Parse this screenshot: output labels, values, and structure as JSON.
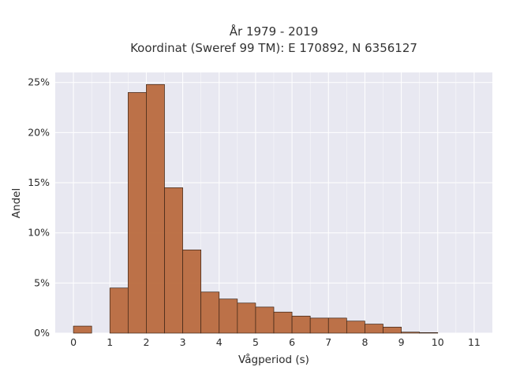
{
  "chart_data": {
    "type": "bar",
    "title_line1": "År 1979 - 2019",
    "title_line2": "Koordinat (Sweref 99 TM): E 170892, N 6356127",
    "xlabel": "Vågperiod (s)",
    "ylabel": "Andel",
    "xlim": [
      -0.5,
      11.5
    ],
    "ylim": [
      0,
      0.26
    ],
    "x_ticks": [
      0,
      1,
      2,
      3,
      4,
      5,
      6,
      7,
      8,
      9,
      10,
      11
    ],
    "y_ticks": [
      0,
      0.05,
      0.1,
      0.15,
      0.2,
      0.25
    ],
    "y_tick_labels": [
      "0%",
      "5%",
      "10%",
      "15%",
      "20%",
      "25%"
    ],
    "bin_width": 0.5,
    "bins": [
      {
        "x0": 0.0,
        "value": 0.007
      },
      {
        "x0": 0.5,
        "value": 0.0
      },
      {
        "x0": 1.0,
        "value": 0.045
      },
      {
        "x0": 1.5,
        "value": 0.24
      },
      {
        "x0": 2.0,
        "value": 0.248
      },
      {
        "x0": 2.5,
        "value": 0.145
      },
      {
        "x0": 3.0,
        "value": 0.083
      },
      {
        "x0": 3.5,
        "value": 0.041
      },
      {
        "x0": 4.0,
        "value": 0.034
      },
      {
        "x0": 4.5,
        "value": 0.03
      },
      {
        "x0": 5.0,
        "value": 0.026
      },
      {
        "x0": 5.5,
        "value": 0.021
      },
      {
        "x0": 6.0,
        "value": 0.017
      },
      {
        "x0": 6.5,
        "value": 0.015
      },
      {
        "x0": 7.0,
        "value": 0.015
      },
      {
        "x0": 7.5,
        "value": 0.012
      },
      {
        "x0": 8.0,
        "value": 0.009
      },
      {
        "x0": 8.5,
        "value": 0.006
      },
      {
        "x0": 9.0,
        "value": 0.001
      },
      {
        "x0": 9.5,
        "value": 0.0005
      }
    ],
    "grid": true,
    "bar_color": "#b96a3e",
    "bar_edge_color": "#3b2416",
    "plot_background": "#e8e8f1",
    "grid_color": "#ffffff"
  }
}
